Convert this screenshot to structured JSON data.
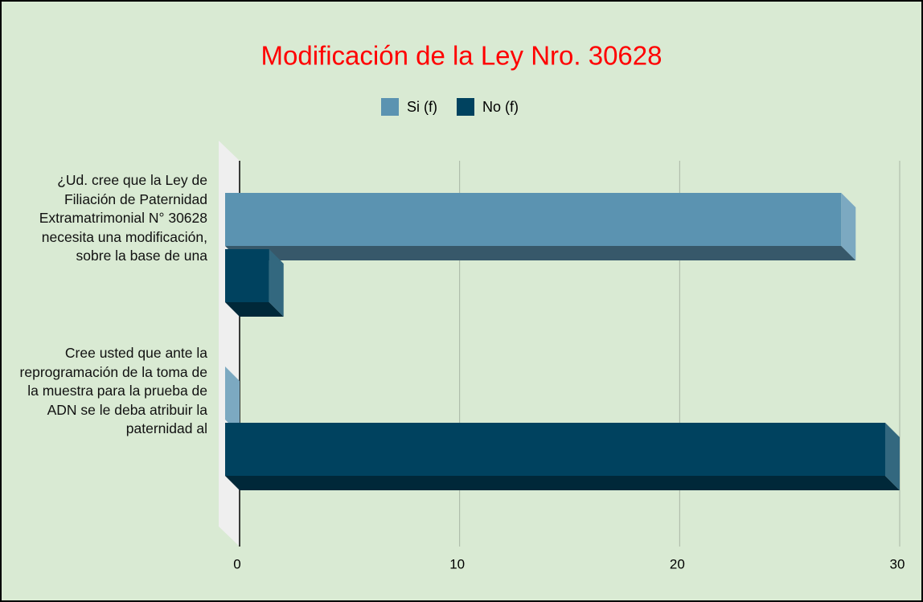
{
  "chart_data": {
    "type": "bar3d_horizontal",
    "title": "Modificación de la Ley Nro. 30628",
    "categories": [
      "¿Ud. cree que la Ley de Filiación de Paternidad Extramatrimonial N° 30628 necesita una modificación, sobre la base de una",
      "Cree usted que ante la reprogramación de la toma de la muestra para la prueba de ADN se le deba atribuir la paternidad al"
    ],
    "series": [
      {
        "name": "Si (f)",
        "color": "#5b93b1",
        "values": [
          28,
          0
        ]
      },
      {
        "name": "No (f)",
        "color": "#00425f",
        "values": [
          2,
          30
        ]
      }
    ],
    "xlim": [
      0,
      30
    ],
    "xticks": [
      0,
      10,
      20,
      30
    ],
    "grid": true,
    "legend": "top",
    "title_color": "#ff0000"
  }
}
